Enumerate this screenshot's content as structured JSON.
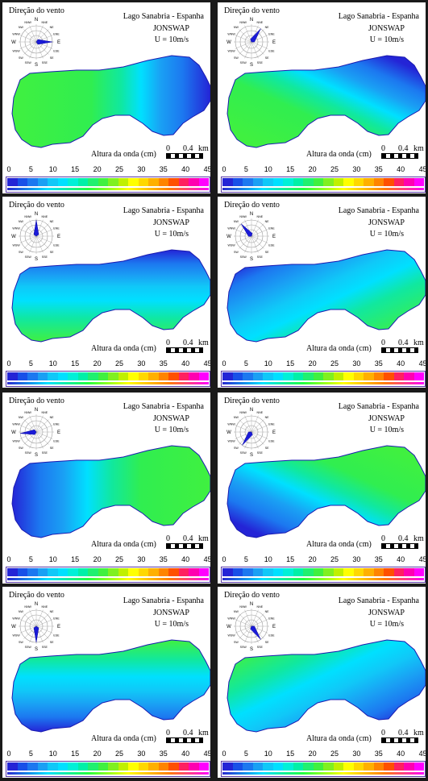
{
  "figure": {
    "panels": [
      {
        "wind_label": "Direção do vento",
        "lake": "Lago Sanabria - Espanha",
        "model": "JONSWAP",
        "speed": "U = 10m/s",
        "axis_label": "Altura da onda (cm)",
        "scale_zero": "0",
        "scale_value": "0.4",
        "scale_unit": "km",
        "wind_direction_deg": 90,
        "map_style": "west-high"
      },
      {
        "wind_label": "Direção do vento",
        "lake": "Lago Sanabria - Espanha",
        "model": "JONSWAP",
        "speed": "U = 10m/s",
        "axis_label": "Altura da onda (cm)",
        "scale_zero": "0",
        "scale_value": "0.4",
        "scale_unit": "km",
        "wind_direction_deg": 35,
        "map_style": "southwest-high"
      },
      {
        "wind_label": "Direção do vento",
        "lake": "Lago Sanabria - Espanha",
        "model": "JONSWAP",
        "speed": "U = 10m/s",
        "axis_label": "Altura da onda (cm)",
        "scale_zero": "0",
        "scale_value": "0.4",
        "scale_unit": "km",
        "wind_direction_deg": 0,
        "map_style": "south-high"
      },
      {
        "wind_label": "Direção do vento",
        "lake": "Lago Sanabria - Espanha",
        "model": "JONSWAP",
        "speed": "U = 10m/s",
        "axis_label": "Altura da onda (cm)",
        "scale_zero": "0",
        "scale_value": "0.4",
        "scale_unit": "km",
        "wind_direction_deg": 320,
        "map_style": "southeast-high"
      },
      {
        "wind_label": "Direção do vento",
        "lake": "Lago Sanabria - Espanha",
        "model": "JONSWAP",
        "speed": "U = 10m/s",
        "axis_label": "Altura da onda (cm)",
        "scale_zero": "0",
        "scale_value": "0.4",
        "scale_unit": "km",
        "wind_direction_deg": 265,
        "map_style": "east-high"
      },
      {
        "wind_label": "Direção do vento",
        "lake": "Lago Sanabria - Espanha",
        "model": "JONSWAP",
        "speed": "U = 10m/s",
        "axis_label": "Altura da onda (cm)",
        "scale_zero": "0",
        "scale_value": "0.4",
        "scale_unit": "km",
        "wind_direction_deg": 215,
        "map_style": "northeast-high"
      },
      {
        "wind_label": "Direção do vento",
        "lake": "Lago Sanabria - Espanha",
        "model": "JONSWAP",
        "speed": "U = 10m/s",
        "axis_label": "Altura da onda (cm)",
        "scale_zero": "0",
        "scale_value": "0.4",
        "scale_unit": "km",
        "wind_direction_deg": 180,
        "map_style": "north-high"
      },
      {
        "wind_label": "Direção do vento",
        "lake": "Lago Sanabria - Espanha",
        "model": "JONSWAP",
        "speed": "U = 10m/s",
        "axis_label": "Altura da onda (cm)",
        "scale_zero": "0",
        "scale_value": "0.4",
        "scale_unit": "km",
        "wind_direction_deg": 145,
        "map_style": "northwest-high"
      }
    ],
    "colorbar_ticks": [
      "0",
      "5",
      "10",
      "15",
      "20",
      "25",
      "30",
      "35",
      "40",
      "45"
    ],
    "colorbar_colors": [
      "#2424d6",
      "#1850e8",
      "#1c78f0",
      "#1aa0f4",
      "#10c8f8",
      "#00e0ff",
      "#00f0d8",
      "#00f0a8",
      "#20f070",
      "#40f040",
      "#80f020",
      "#c0f000",
      "#ffff00",
      "#ffd800",
      "#ffb000",
      "#ff8400",
      "#ff5000",
      "#ff2060",
      "#ff00b0",
      "#ff00ff"
    ],
    "rose_labels": {
      "n": "N",
      "nne": "NNE",
      "ne": "NE",
      "ene": "ENE",
      "e": "E",
      "ese": "ESE",
      "se": "SE",
      "sse": "SSE",
      "s": "S",
      "ssw": "SSW",
      "sw": "SW",
      "wsw": "WSW",
      "w": "W",
      "wnw": "WNW",
      "nw": "NW",
      "nnw": "NNW"
    }
  }
}
